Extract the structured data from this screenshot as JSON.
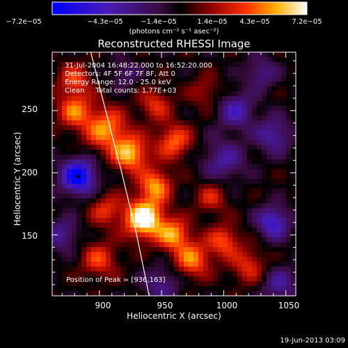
{
  "colorbar": {
    "ticks": [
      "−7.2e−05",
      "−4.3e−05",
      "−1.4e−05",
      "1.4e−05",
      "4.3e−05",
      "7.2e−05"
    ],
    "units": "(photons cm⁻² s⁻¹ asec⁻²)",
    "range": [
      -7.2e-05,
      7.2e-05
    ]
  },
  "chart_data": {
    "type": "heatmap",
    "title": "Reconstructed RHESSI Image",
    "xlabel": "Heliocentric X (arcsec)",
    "ylabel": "Heliocentric Y (arcsec)",
    "xlim": [
      862,
      1058
    ],
    "ylim": [
      101,
      297
    ],
    "x_ticks": [
      "900",
      "950",
      "1000",
      "1050"
    ],
    "y_ticks": [
      "150",
      "200",
      "250"
    ],
    "x_tick_values": [
      900,
      950,
      1000,
      1050
    ],
    "y_tick_values": [
      150,
      200,
      250
    ],
    "annotations": [
      "31-Jul-2004 16:48:22.000 to 16:52:20.000",
      "Detectors: 4F 5F 6F 7F 8F, Att 0",
      "Energy Range: 12.0 - 25.0 keV",
      "Clean     Total counts: 1.77E+03"
    ],
    "peak_label": "Position of Peak = [936,163]",
    "peak_position": [
      936,
      163
    ],
    "limb_arc": [
      [
        893,
        297
      ],
      [
        905,
        250
      ],
      [
        918,
        200
      ],
      [
        930,
        150
      ],
      [
        940,
        101
      ]
    ],
    "minimum_marker": [
      883,
      197
    ]
  },
  "footer": {
    "date": "19-Jun-2013 03:09"
  }
}
